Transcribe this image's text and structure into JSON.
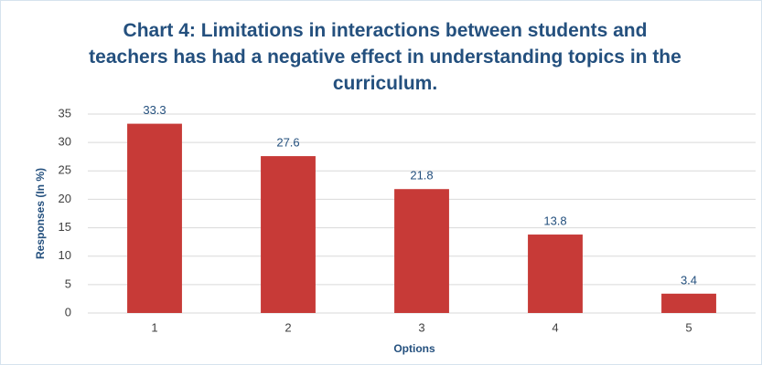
{
  "chart_data": {
    "type": "bar",
    "title": "Chart 4: Limitations in interactions between students and teachers has had a negative effect in understanding topics in the curriculum.",
    "x_label": "Options",
    "y_label": "Responses (In %)",
    "categories": [
      "1",
      "2",
      "3",
      "4",
      "5"
    ],
    "values": [
      33.3,
      27.6,
      21.8,
      13.8,
      3.4
    ],
    "color": "#c73a37",
    "ylim": [
      0,
      35
    ],
    "yticks": [
      0,
      5,
      10,
      15,
      20,
      25,
      30,
      35
    ],
    "grid": true
  }
}
